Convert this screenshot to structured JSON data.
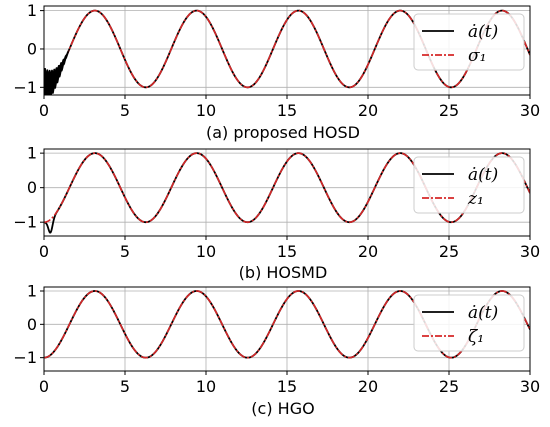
{
  "chart_data": [
    {
      "type": "line",
      "caption": "(a) proposed HOSD",
      "xlim": [
        0,
        30
      ],
      "ylim": [
        -1.2,
        1.12
      ],
      "xticks": [
        "0",
        "5",
        "10",
        "15",
        "20",
        "25",
        "30"
      ],
      "yticks": [
        "-1",
        "0",
        "1"
      ],
      "grid": true,
      "legend": "top-right",
      "transient": {
        "kind": "chatter",
        "t_end": 1.5,
        "amplitude": 0.5
      },
      "series": [
        {
          "name": "ȧ(t)",
          "color": "#000000",
          "style": "solid",
          "function": "-cos(t)",
          "t_range": [
            0,
            30
          ]
        },
        {
          "name": "σ₁",
          "color": "#d62728",
          "style": "dashdot",
          "function": "-cos(t)",
          "t_range": [
            0,
            30
          ]
        }
      ]
    },
    {
      "type": "line",
      "caption": "(b) HOSMD",
      "xlim": [
        0,
        30
      ],
      "ylim": [
        -1.4,
        1.12
      ],
      "xticks": [
        "0",
        "5",
        "10",
        "15",
        "20",
        "25",
        "30"
      ],
      "yticks": [
        "-1",
        "0",
        "1"
      ],
      "grid": true,
      "legend": "top-right",
      "transient": {
        "kind": "dip",
        "t_peak": 0.4,
        "min_value": -1.3
      },
      "series": [
        {
          "name": "ȧ(t)",
          "color": "#000000",
          "style": "solid",
          "function": "-cos(t)",
          "t_range": [
            0,
            30
          ]
        },
        {
          "name": "z₁",
          "color": "#d62728",
          "style": "dashdot",
          "function": "-cos(t)",
          "t_range": [
            0,
            30
          ]
        }
      ]
    },
    {
      "type": "line",
      "caption": "(c) HGO",
      "xlim": [
        0,
        30
      ],
      "ylim": [
        -1.4,
        1.12
      ],
      "xticks": [
        "0",
        "5",
        "10",
        "15",
        "20",
        "25",
        "30"
      ],
      "yticks": [
        "-1",
        "0",
        "1"
      ],
      "grid": true,
      "legend": "top-right",
      "transient": {
        "kind": "none"
      },
      "series": [
        {
          "name": "ȧ(t)",
          "color": "#000000",
          "style": "solid",
          "function": "-cos(t)",
          "t_range": [
            0,
            30
          ]
        },
        {
          "name": "ζ₁",
          "color": "#d62728",
          "style": "dashdot",
          "function": "-cos(t)",
          "t_range": [
            0,
            30
          ]
        }
      ]
    }
  ]
}
